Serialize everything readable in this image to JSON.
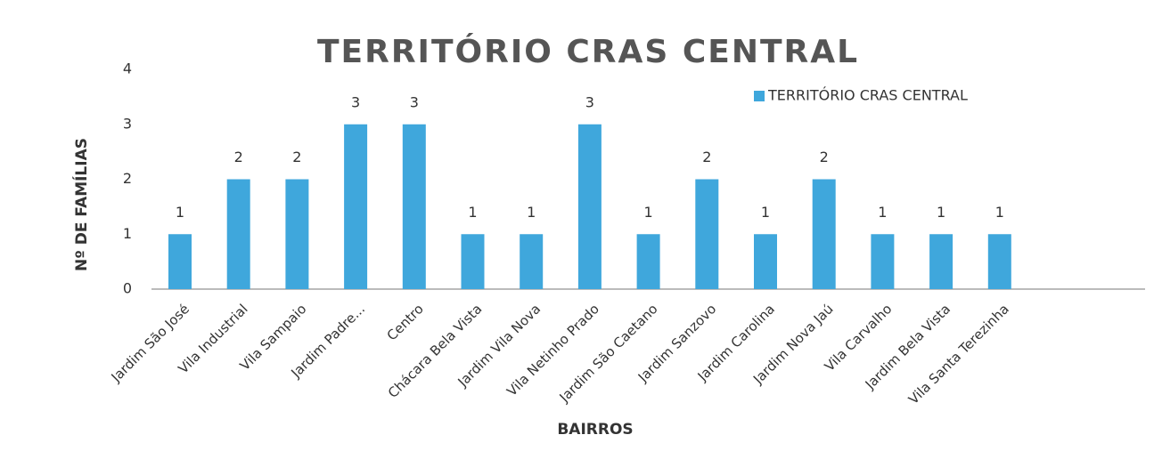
{
  "chart_data": {
    "type": "bar",
    "title": "TERRITÓRIO CRAS CENTRAL",
    "x_label": "BAIRROS",
    "y_label": "Nº DE FAMÍLIAS",
    "categories": [
      "Jardim São José",
      "Vila Industrial",
      "Vila Sampaio",
      "Jardim Padre...",
      "Centro",
      "Chácara Bela Vista",
      "Jardim Vila Nova",
      "Vila Netinho Prado",
      "Jardim São Caetano",
      "Jardim Sanzovo",
      "Jardim Carolina",
      "Jardim Nova Jaú",
      "Vila Carvalho",
      "Jardim Bela Vista",
      "Vila Santa Terezinha"
    ],
    "series": [
      {
        "name": "TERRITÓRIO CRAS CENTRAL",
        "color": "#3fa7dc",
        "values": [
          1,
          2,
          2,
          3,
          3,
          1,
          1,
          3,
          1,
          2,
          1,
          2,
          1,
          1,
          1
        ]
      }
    ],
    "ylim": [
      0,
      4
    ],
    "yticks": [
      0,
      1,
      2,
      3,
      4
    ],
    "grid": false,
    "legend": "top-right",
    "data_labels": true
  }
}
